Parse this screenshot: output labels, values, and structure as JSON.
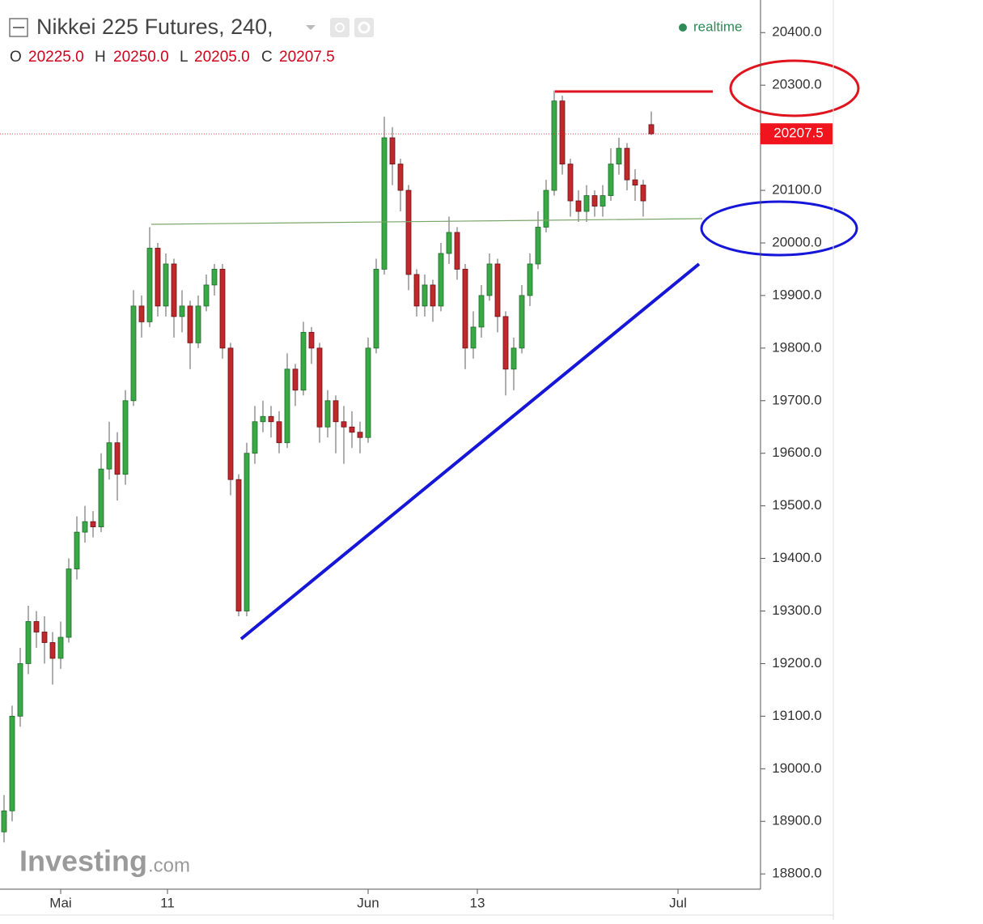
{
  "chart_data": {
    "type": "candlestick",
    "title": "Nikkei 225 Futures, 240,",
    "realtime": "realtime",
    "ohlc_letters": [
      "O",
      "H",
      "L",
      "C"
    ],
    "ohlc_labels": [
      "20225.0",
      "20250.0",
      "20205.0",
      "20207.5"
    ],
    "logo": "Investing",
    "logo_suffix": ".com",
    "up_color": "#3aa845",
    "down_color": "#c0282b",
    "xlim": [
      -0.5,
      93.5
    ],
    "xticks": [
      {
        "value": 7,
        "label": "Mai"
      },
      {
        "value": 20.2,
        "label": "11"
      },
      {
        "value": 45,
        "label": "Jun"
      },
      {
        "value": 58.5,
        "label": "13"
      },
      {
        "value": 83.3,
        "label": "Jul"
      }
    ],
    "ylim": [
      18771,
      20462
    ],
    "yticks": [
      {
        "value": 18800,
        "label": "18800.0"
      },
      {
        "value": 18900,
        "label": "18900.0"
      },
      {
        "value": 19000,
        "label": "19000.0"
      },
      {
        "value": 19100,
        "label": "19100.0"
      },
      {
        "value": 19200,
        "label": "19200.0"
      },
      {
        "value": 19300,
        "label": "19300.0"
      },
      {
        "value": 19400,
        "label": "19400.0"
      },
      {
        "value": 19500,
        "label": "19500.0"
      },
      {
        "value": 19600,
        "label": "19600.0"
      },
      {
        "value": 19700,
        "label": "19700.0"
      },
      {
        "value": 19800,
        "label": "19800.0"
      },
      {
        "value": 19900,
        "label": "19900.0"
      },
      {
        "value": 20000,
        "label": "20000.0"
      },
      {
        "value": 20100,
        "label": "20100.0"
      },
      {
        "value": 20200,
        "label": "20200.0"
      },
      {
        "value": 20300,
        "label": "20300.0"
      },
      {
        "value": 20400,
        "label": "20400.0"
      }
    ],
    "open": [
      18880,
      18920,
      19100,
      19200,
      19280,
      19260,
      19240,
      19210,
      19250,
      19380,
      19450,
      19470,
      19460,
      19570,
      19620,
      19560,
      19700,
      19880,
      19850,
      19990,
      19880,
      19960,
      19860,
      19880,
      19810,
      19880,
      19920,
      19950,
      19800,
      19550,
      19300,
      19600,
      19660,
      19670,
      19660,
      19620,
      19760,
      19720,
      19830,
      19800,
      19650,
      19700,
      19660,
      19650,
      19640,
      19630,
      19800,
      19950,
      20200,
      20150,
      20100,
      19940,
      19880,
      19920,
      19880,
      19980,
      20020,
      19950,
      19800,
      19840,
      19900,
      19960,
      19860,
      19760,
      19800,
      19900,
      19960,
      20030,
      20100,
      20270,
      20150,
      20080,
      20060,
      20090,
      20070,
      20090,
      20150,
      20180,
      20120,
      20110,
      20225
    ],
    "high": [
      18950,
      19120,
      19230,
      19310,
      19300,
      19290,
      19260,
      19280,
      19400,
      19480,
      19500,
      19490,
      19600,
      19660,
      19640,
      19720,
      19910,
      19900,
      20030,
      20000,
      19980,
      19970,
      19910,
      19890,
      19900,
      19940,
      19960,
      19960,
      19810,
      19560,
      19620,
      19690,
      19700,
      19690,
      19680,
      19790,
      19770,
      19850,
      19840,
      19810,
      19720,
      19710,
      19690,
      19680,
      19660,
      19820,
      19970,
      20240,
      20220,
      20160,
      20110,
      19950,
      19940,
      19930,
      20000,
      20050,
      20030,
      19960,
      19870,
      19920,
      19980,
      19970,
      19870,
      19820,
      19920,
      19980,
      20060,
      20120,
      20290,
      20280,
      20160,
      20100,
      20110,
      20100,
      20110,
      20180,
      20200,
      20190,
      20140,
      20120,
      20250
    ],
    "low": [
      18860,
      18900,
      19080,
      19180,
      19230,
      19200,
      19160,
      19190,
      19240,
      19360,
      19430,
      19440,
      19450,
      19550,
      19510,
      19540,
      19690,
      19820,
      19840,
      19860,
      19860,
      19820,
      19830,
      19760,
      19800,
      19870,
      19900,
      19780,
      19520,
      19290,
      19290,
      19580,
      19640,
      19630,
      19600,
      19610,
      19690,
      19710,
      19770,
      19620,
      19630,
      19600,
      19580,
      19610,
      19600,
      19620,
      19790,
      19940,
      20110,
      20060,
      19910,
      19860,
      19860,
      19850,
      19870,
      19960,
      19930,
      19760,
      19780,
      19820,
      19890,
      19830,
      19710,
      19720,
      19790,
      19880,
      19950,
      20020,
      20090,
      20130,
      20050,
      20040,
      20040,
      20050,
      20050,
      20080,
      20130,
      20100,
      20080,
      20050,
      20205
    ],
    "close": [
      18920,
      19100,
      19200,
      19280,
      19260,
      19240,
      19210,
      19250,
      19380,
      19450,
      19470,
      19460,
      19570,
      19620,
      19560,
      19700,
      19880,
      19850,
      19990,
      19880,
      19960,
      19860,
      19880,
      19810,
      19880,
      19920,
      19950,
      19800,
      19550,
      19300,
      19600,
      19660,
      19670,
      19660,
      19620,
      19760,
      19720,
      19830,
      19800,
      19650,
      19700,
      19660,
      19650,
      19640,
      19630,
      19800,
      19950,
      20200,
      20150,
      20100,
      19940,
      19880,
      19920,
      19880,
      19980,
      20020,
      19950,
      19800,
      19840,
      19900,
      19960,
      19860,
      19760,
      19800,
      19900,
      19960,
      20030,
      20100,
      20270,
      20150,
      20080,
      20060,
      20090,
      20070,
      20090,
      20150,
      20180,
      20120,
      20110,
      20080,
      20207.5
    ]
  }
}
